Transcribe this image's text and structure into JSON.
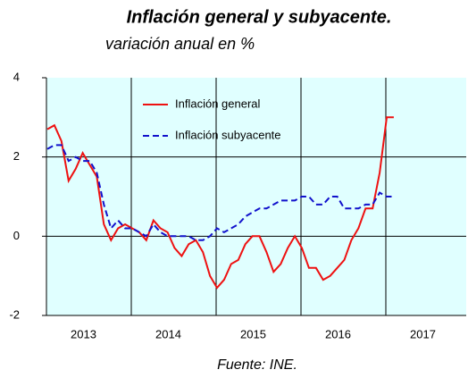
{
  "chart_data": {
    "type": "line",
    "title": "Inflación general y subyacente.",
    "subtitle": "variación anual en  %",
    "source": "Fuente: INE.",
    "categories": [
      null,
      null,
      null,
      null,
      null,
      null,
      "2013",
      null,
      null,
      null,
      null,
      null,
      null,
      null,
      null,
      null,
      null,
      null,
      "2014",
      null,
      null,
      null,
      null,
      null,
      null,
      null,
      null,
      null,
      null,
      null,
      "2015",
      null,
      null,
      null,
      null,
      null,
      null,
      null,
      null,
      null,
      null,
      null,
      "2016",
      null,
      null,
      null,
      null,
      null,
      null,
      null,
      null,
      null,
      null,
      null,
      "2017"
    ],
    "series": [
      {
        "name": "Inflación general",
        "color": "#ee1111",
        "dash": false,
        "values": [
          2.7,
          2.8,
          2.4,
          1.4,
          1.7,
          2.1,
          1.8,
          1.5,
          0.3,
          -0.1,
          0.2,
          0.3,
          0.2,
          0.1,
          -0.1,
          0.4,
          0.2,
          0.1,
          -0.3,
          -0.5,
          -0.2,
          -0.1,
          -0.4,
          -1.0,
          -1.3,
          -1.1,
          -0.7,
          -0.6,
          -0.2,
          0.0,
          0.0,
          -0.4,
          -0.9,
          -0.7,
          -0.3,
          0.0,
          -0.3,
          -0.8,
          -0.8,
          -1.1,
          -1.0,
          -0.8,
          -0.6,
          -0.1,
          0.2,
          0.7,
          0.7,
          1.6,
          3.0,
          3.0,
          null,
          null,
          null,
          null,
          null
        ]
      },
      {
        "name": "Inflación subyacente",
        "color": "#1111cc",
        "dash": true,
        "values": [
          2.2,
          2.3,
          2.3,
          1.9,
          2.0,
          1.9,
          1.9,
          1.6,
          0.8,
          0.2,
          0.4,
          0.2,
          0.2,
          0.1,
          0.0,
          0.3,
          0.1,
          0.0,
          0.0,
          0.0,
          0.0,
          -0.1,
          -0.1,
          0.0,
          0.2,
          0.1,
          0.2,
          0.3,
          0.5,
          0.6,
          0.7,
          0.7,
          0.8,
          0.9,
          0.9,
          0.9,
          1.0,
          1.0,
          0.8,
          0.8,
          1.0,
          1.0,
          0.7,
          0.7,
          0.7,
          0.8,
          0.8,
          1.1,
          1.0,
          1.0,
          null,
          null,
          null,
          null,
          null
        ]
      }
    ],
    "ylim": [
      -2,
      4
    ],
    "yticks": [
      -2,
      0,
      2,
      4
    ],
    "grid": true,
    "background": "#e0ffff"
  }
}
